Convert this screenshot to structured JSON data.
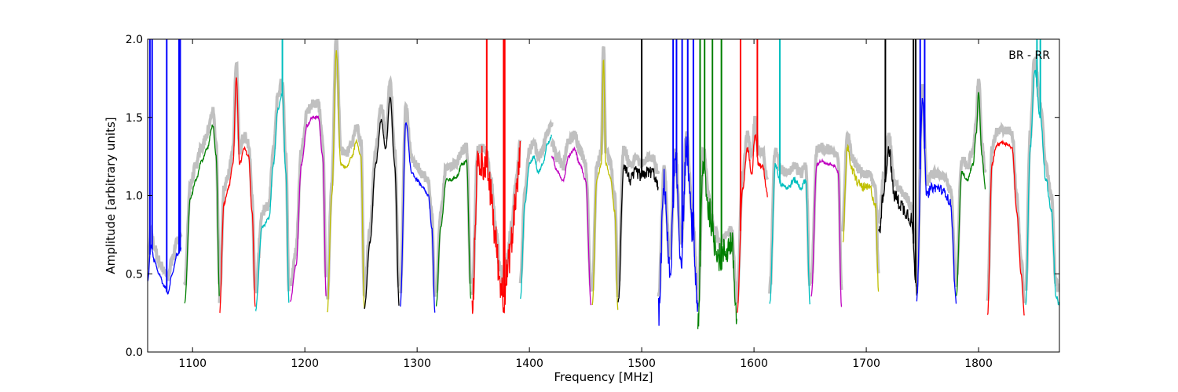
{
  "chart_data": {
    "type": "line",
    "title": "",
    "xlabel": "Frequency [MHz]",
    "ylabel": "Amplitude [arbitrary units]",
    "xlim": [
      1060,
      1872
    ],
    "ylim": [
      0.0,
      2.0
    ],
    "xticks": [
      1100,
      1200,
      1300,
      1400,
      1500,
      1600,
      1700,
      1800
    ],
    "xtick_labels": [
      "1100",
      "1200",
      "1300",
      "1400",
      "1500",
      "1600",
      "1700",
      "1800"
    ],
    "yticks": [
      0.0,
      0.5,
      1.0,
      1.5,
      2.0
    ],
    "ytick_labels": [
      "0.0",
      "0.5",
      "1.0",
      "1.5",
      "2.0"
    ],
    "grid": false,
    "annotation": "BR - RR",
    "background_color": "#c0c0c0",
    "series": [
      {
        "color": "#0000ff",
        "x": [
          1060,
          1063,
          1066,
          1070,
          1075,
          1078,
          1082,
          1086,
          1090
        ],
        "values": [
          0.45,
          0.68,
          0.58,
          0.5,
          0.42,
          0.38,
          0.5,
          0.62,
          0.66
        ],
        "spikes": [
          1062,
          1064,
          1077,
          1088,
          1089
        ]
      },
      {
        "color": "#008000",
        "x": [
          1093,
          1098,
          1103,
          1108,
          1113,
          1118,
          1121,
          1124
        ],
        "values": [
          0.32,
          0.98,
          1.1,
          1.22,
          1.3,
          1.45,
          1.25,
          0.35
        ],
        "spikes": []
      },
      {
        "color": "#ff0000",
        "x": [
          1124,
          1128,
          1132,
          1136,
          1139,
          1142,
          1146,
          1150,
          1153,
          1156
        ],
        "values": [
          0.25,
          0.95,
          1.05,
          1.2,
          1.75,
          1.2,
          1.3,
          1.25,
          0.9,
          0.28
        ],
        "spikes": []
      },
      {
        "color": "#00bfbf",
        "x": [
          1156,
          1162,
          1168,
          1172,
          1176,
          1180,
          1183,
          1186
        ],
        "values": [
          0.27,
          0.8,
          0.85,
          1.2,
          1.55,
          1.65,
          1.15,
          0.3
        ],
        "spikes": [
          1180
        ]
      },
      {
        "color": "#bf00bf",
        "x": [
          1187,
          1192,
          1197,
          1202,
          1207,
          1212,
          1216,
          1219
        ],
        "values": [
          0.33,
          0.55,
          1.2,
          1.45,
          1.5,
          1.5,
          1.25,
          0.36
        ],
        "spikes": []
      },
      {
        "color": "#bfbf00",
        "x": [
          1220,
          1224,
          1228,
          1232,
          1237,
          1242,
          1246,
          1250,
          1253
        ],
        "values": [
          0.26,
          1.0,
          1.92,
          1.2,
          1.18,
          1.25,
          1.35,
          1.25,
          0.27
        ],
        "spikes": []
      },
      {
        "color": "#000000",
        "x": [
          1253,
          1258,
          1263,
          1268,
          1272,
          1276,
          1280,
          1284
        ],
        "values": [
          0.28,
          0.7,
          1.2,
          1.48,
          1.3,
          1.63,
          1.2,
          0.3
        ],
        "spikes": []
      },
      {
        "color": "#0000ff",
        "x": [
          1285,
          1290,
          1295,
          1300,
          1305,
          1310,
          1313,
          1316
        ],
        "values": [
          0.3,
          1.47,
          1.15,
          1.1,
          1.05,
          1.0,
          0.8,
          0.24
        ],
        "spikes": []
      },
      {
        "color": "#008000",
        "x": [
          1317,
          1321,
          1326,
          1330,
          1335,
          1340,
          1344,
          1348
        ],
        "values": [
          0.3,
          0.8,
          1.1,
          1.1,
          1.12,
          1.2,
          1.22,
          0.33
        ],
        "spikes": []
      },
      {
        "color": "#ff0000",
        "x": [
          1349,
          1354,
          1358,
          1362,
          1366,
          1370,
          1374,
          1377,
          1380,
          1384,
          1388,
          1392
        ],
        "values": [
          0.27,
          1.2,
          1.22,
          1.18,
          1.0,
          0.7,
          0.45,
          0.35,
          0.5,
          0.7,
          1.0,
          1.25
        ],
        "spikes": [
          1362,
          1377,
          1378
        ],
        "noise": 0.12
      },
      {
        "color": "#00bfbf",
        "x": [
          1392,
          1396,
          1400,
          1404,
          1408,
          1412,
          1416,
          1420
        ],
        "values": [
          0.35,
          0.95,
          1.2,
          1.25,
          1.15,
          1.2,
          1.33,
          1.38
        ],
        "spikes": []
      },
      {
        "color": "#bf00bf",
        "x": [
          1420,
          1425,
          1430,
          1435,
          1440,
          1445,
          1450,
          1455
        ],
        "values": [
          1.25,
          1.15,
          1.1,
          1.25,
          1.3,
          1.2,
          1.1,
          0.3
        ],
        "spikes": []
      },
      {
        "color": "#bfbf00",
        "x": [
          1456,
          1460,
          1464,
          1466,
          1468,
          1472,
          1476,
          1479
        ],
        "values": [
          0.3,
          1.1,
          1.2,
          1.88,
          1.2,
          1.12,
          0.9,
          0.25
        ],
        "spikes": []
      },
      {
        "color": "#000000",
        "x": [
          1479,
          1484,
          1490,
          1495,
          1500,
          1505,
          1510,
          1515
        ],
        "values": [
          0.3,
          1.2,
          1.1,
          1.15,
          1.12,
          1.15,
          1.15,
          1.05
        ],
        "spikes": [
          1500
        ],
        "noise": 0.04
      },
      {
        "color": "#0000ff",
        "x": [
          1515,
          1520,
          1525,
          1530,
          1535,
          1540,
          1545,
          1550
        ],
        "values": [
          0.25,
          1.08,
          0.5,
          1.2,
          0.6,
          1.3,
          0.8,
          0.3
        ],
        "spikes": [
          1528,
          1531,
          1536,
          1541,
          1546
        ],
        "noise": 0.1
      },
      {
        "color": "#008000",
        "x": [
          1550,
          1555,
          1560,
          1565,
          1570,
          1575,
          1580,
          1585
        ],
        "values": [
          0.2,
          1.2,
          0.9,
          0.7,
          0.6,
          0.65,
          0.7,
          0.2
        ],
        "spikes": [
          1552,
          1556,
          1563,
          1571
        ],
        "noise": 0.1
      },
      {
        "color": "#ff0000",
        "x": [
          1585,
          1590,
          1594,
          1598,
          1601,
          1604,
          1608,
          1612
        ],
        "values": [
          0.25,
          1.05,
          1.3,
          1.15,
          1.4,
          1.2,
          1.18,
          1.0
        ],
        "spikes": [
          1588,
          1603
        ],
        "noise": 0.02
      },
      {
        "color": "#00bfbf",
        "x": [
          1614,
          1619,
          1624,
          1630,
          1636,
          1642,
          1646,
          1650
        ],
        "values": [
          0.3,
          1.2,
          1.08,
          1.05,
          1.1,
          1.05,
          1.1,
          0.3
        ],
        "spikes": [
          1623
        ],
        "noise": 0.02
      },
      {
        "color": "#bf00bf",
        "x": [
          1651,
          1656,
          1660,
          1665,
          1670,
          1675,
          1678
        ],
        "values": [
          0.35,
          1.2,
          1.22,
          1.2,
          1.2,
          1.15,
          0.28
        ],
        "spikes": []
      },
      {
        "color": "#bfbf00",
        "x": [
          1679,
          1683,
          1688,
          1693,
          1698,
          1703,
          1708,
          1711
        ],
        "values": [
          0.7,
          1.3,
          1.15,
          1.08,
          1.05,
          1.05,
          0.95,
          0.4
        ],
        "spikes": [],
        "noise": 0.03
      },
      {
        "color": "#000000",
        "x": [
          1711,
          1716,
          1720,
          1725,
          1730,
          1735,
          1740,
          1745
        ],
        "values": [
          0.75,
          1.05,
          1.3,
          1.0,
          0.95,
          0.9,
          0.85,
          0.4
        ],
        "spikes": [
          1717,
          1742,
          1744
        ],
        "noise": 0.05
      },
      {
        "color": "#0000ff",
        "x": [
          1745,
          1750,
          1754,
          1758,
          1764,
          1770,
          1775,
          1780
        ],
        "values": [
          0.35,
          1.6,
          1.0,
          1.05,
          1.05,
          1.02,
          0.95,
          0.33
        ],
        "spikes": [
          1748,
          1752
        ],
        "noise": 0.03
      },
      {
        "color": "#008000",
        "x": [
          1780,
          1785,
          1790,
          1795,
          1798,
          1800,
          1803,
          1806
        ],
        "values": [
          0.35,
          1.15,
          1.1,
          1.2,
          1.4,
          1.66,
          1.25,
          1.05
        ],
        "spikes": []
      },
      {
        "color": "#ff0000",
        "x": [
          1808,
          1812,
          1816,
          1820,
          1826,
          1830,
          1834,
          1838,
          1841
        ],
        "values": [
          0.24,
          1.2,
          1.32,
          1.34,
          1.33,
          1.3,
          0.9,
          0.5,
          0.23
        ],
        "spikes": []
      },
      {
        "color": "#00bfbf",
        "x": [
          1842,
          1846,
          1850,
          1855,
          1860,
          1865,
          1869,
          1872
        ],
        "values": [
          0.3,
          1.3,
          1.8,
          1.5,
          1.1,
          0.9,
          0.35,
          0.3
        ],
        "spikes": [
          1852,
          1855
        ],
        "noise": 0.02
      }
    ]
  }
}
